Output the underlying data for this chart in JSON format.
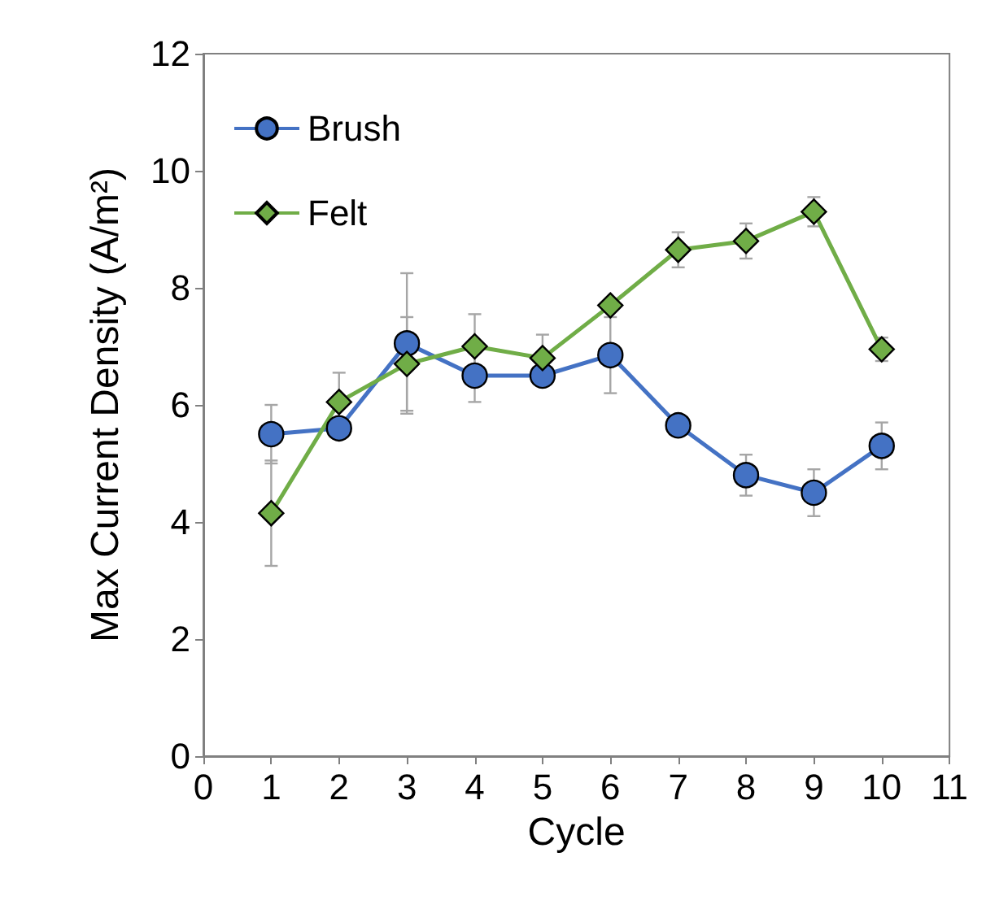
{
  "chart_data": {
    "type": "line",
    "xlabel": "Cycle",
    "ylabel": "Max Current Density (A/m²)",
    "x": [
      1,
      2,
      3,
      4,
      5,
      6,
      7,
      8,
      9,
      10
    ],
    "xlim": [
      0,
      11
    ],
    "xticks": [
      0,
      1,
      2,
      3,
      4,
      5,
      6,
      7,
      8,
      9,
      10,
      11
    ],
    "ylim": [
      0,
      12
    ],
    "yticks": [
      0,
      2,
      4,
      6,
      8,
      10,
      12
    ],
    "grid": false,
    "legend": "top left",
    "series": [
      {
        "name": "Brush",
        "color": "#4472c4",
        "marker": "circle",
        "values": [
          5.5,
          5.6,
          7.05,
          6.5,
          6.5,
          6.85,
          5.65,
          4.8,
          4.5,
          5.3
        ],
        "errors": [
          0.5,
          null,
          1.2,
          0.45,
          null,
          0.65,
          null,
          0.35,
          0.4,
          0.4
        ]
      },
      {
        "name": "Felt",
        "color": "#70ad47",
        "marker": "diamond",
        "values": [
          4.15,
          6.05,
          6.7,
          7.0,
          6.8,
          7.7,
          8.65,
          8.8,
          9.3,
          6.95
        ],
        "errors": [
          0.9,
          0.5,
          0.8,
          0.55,
          0.4,
          null,
          0.3,
          0.3,
          0.25,
          0.2
        ]
      }
    ]
  }
}
